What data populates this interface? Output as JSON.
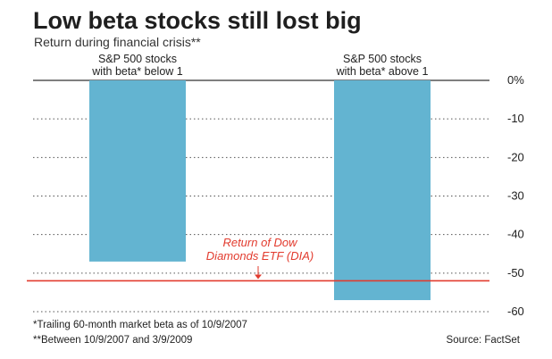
{
  "header": {
    "title": "Low beta stocks still lost big",
    "subtitle": "Return during financial crisis**"
  },
  "chart_data": {
    "type": "bar",
    "categories": [
      [
        "S&P 500 stocks",
        "with beta* below 1"
      ],
      [
        "S&P 500 stocks",
        "with beta* above 1"
      ]
    ],
    "values": [
      -47,
      -57
    ],
    "ylim": [
      -60,
      0
    ],
    "yticks": [
      0,
      -10,
      -20,
      -30,
      -40,
      -50,
      -60
    ],
    "ytick_labels": [
      "0%",
      "-10",
      "-20",
      "-30",
      "-40",
      "-50",
      "-60"
    ],
    "bar_color": "#63b4d1",
    "grid": true,
    "reference_line": {
      "value": -52,
      "label": [
        "Return of Dow",
        "Diamonds ETF (DIA)"
      ],
      "color": "#e23b2e"
    }
  },
  "footer": {
    "note1": "*Trailing 60-month market beta as of 10/9/2007",
    "note2": "**Between 10/9/2007 and 3/9/2009",
    "source": "Source: FactSet"
  }
}
